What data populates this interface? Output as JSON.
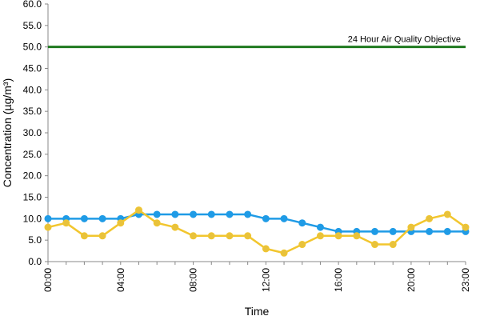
{
  "chart_data": {
    "type": "line",
    "title": "",
    "xlabel": "Time",
    "ylabel": "Concentration (µg/m³)",
    "ylim": [
      0,
      60
    ],
    "y_ticks": [
      "0.0",
      "5.0",
      "10.0",
      "15.0",
      "20.0",
      "25.0",
      "30.0",
      "35.0",
      "40.0",
      "45.0",
      "50.0",
      "55.0",
      "60.0"
    ],
    "x": [
      "00:00",
      "01:00",
      "02:00",
      "03:00",
      "04:00",
      "05:00",
      "06:00",
      "07:00",
      "08:00",
      "09:00",
      "10:00",
      "11:00",
      "12:00",
      "13:00",
      "14:00",
      "15:00",
      "16:00",
      "17:00",
      "18:00",
      "19:00",
      "20:00",
      "21:00",
      "22:00",
      "23:00"
    ],
    "x_tick_labels": [
      "00:00",
      "04:00",
      "08:00",
      "12:00",
      "16:00",
      "20:00",
      "23:00"
    ],
    "series": [
      {
        "color": "#1f9be6",
        "marker_color": "#1f9be6",
        "values": [
          10,
          10,
          10,
          10,
          10,
          11,
          11,
          11,
          11,
          11,
          11,
          11,
          10,
          10,
          9,
          8,
          7,
          7,
          7,
          7,
          7,
          7,
          7,
          7
        ]
      },
      {
        "color": "#f2c62e",
        "marker_color": "#e8c23c",
        "values": [
          8,
          9,
          6,
          6,
          9,
          12,
          9,
          8,
          6,
          6,
          6,
          6,
          3,
          2,
          4,
          6,
          6,
          6,
          4,
          4,
          8,
          10,
          11,
          8
        ]
      }
    ],
    "objective_line": {
      "value": 50,
      "label": "24 Hour Air Quality Objective",
      "color": "#1f7a1f"
    },
    "grid": false,
    "legend": "none"
  }
}
